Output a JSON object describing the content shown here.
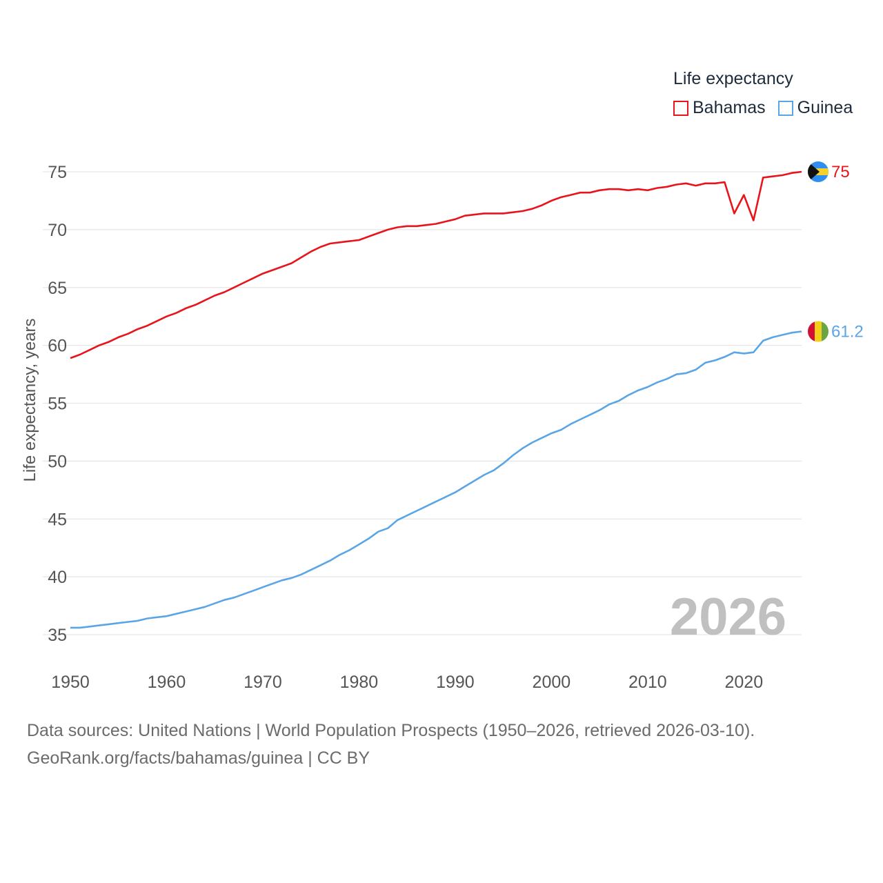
{
  "legend": {
    "title": "Life expectancy",
    "items": [
      {
        "label": "Bahamas",
        "color": "#e8131b"
      },
      {
        "label": "Guinea",
        "color": "#5aa5e6"
      }
    ]
  },
  "footer": {
    "line1": "Data sources: United Nations | World Population Prospects (1950–2026, retrieved 2026-03-10).",
    "line2": "GeoRank.org/facts/bahamas/guinea | CC BY"
  },
  "chart_data": {
    "type": "line",
    "title": "Life expectancy",
    "xlabel": "",
    "ylabel": "Life expectancy, years",
    "year_label": "2026",
    "xlim": [
      1950,
      2026
    ],
    "ylim": [
      35,
      75
    ],
    "x_ticks": [
      1950,
      1960,
      1970,
      1980,
      1990,
      2000,
      2010,
      2020
    ],
    "y_ticks": [
      35,
      40,
      45,
      50,
      55,
      60,
      65,
      70,
      75
    ],
    "grid": true,
    "legend_position": "top-right",
    "x": [
      1950,
      1951,
      1952,
      1953,
      1954,
      1955,
      1956,
      1957,
      1958,
      1959,
      1960,
      1961,
      1962,
      1963,
      1964,
      1965,
      1966,
      1967,
      1968,
      1969,
      1970,
      1971,
      1972,
      1973,
      1974,
      1975,
      1976,
      1977,
      1978,
      1979,
      1980,
      1981,
      1982,
      1983,
      1984,
      1985,
      1986,
      1987,
      1988,
      1989,
      1990,
      1991,
      1992,
      1993,
      1994,
      1995,
      1996,
      1997,
      1998,
      1999,
      2000,
      2001,
      2002,
      2003,
      2004,
      2005,
      2006,
      2007,
      2008,
      2009,
      2010,
      2011,
      2012,
      2013,
      2014,
      2015,
      2016,
      2017,
      2018,
      2019,
      2020,
      2021,
      2022,
      2023,
      2024,
      2025,
      2026
    ],
    "series": [
      {
        "name": "Bahamas",
        "color": "#e8131b",
        "end_label": "75",
        "flag": "bahamas-flag-icon",
        "values": [
          58.9,
          59.2,
          59.6,
          60.0,
          60.3,
          60.7,
          61.0,
          61.4,
          61.7,
          62.1,
          62.5,
          62.8,
          63.2,
          63.5,
          63.9,
          64.3,
          64.6,
          65.0,
          65.4,
          65.8,
          66.2,
          66.5,
          66.8,
          67.1,
          67.6,
          68.1,
          68.5,
          68.8,
          68.9,
          69.0,
          69.1,
          69.4,
          69.7,
          70.0,
          70.2,
          70.3,
          70.3,
          70.4,
          70.5,
          70.7,
          70.9,
          71.2,
          71.3,
          71.4,
          71.4,
          71.4,
          71.5,
          71.6,
          71.8,
          72.1,
          72.5,
          72.8,
          73.0,
          73.2,
          73.2,
          73.4,
          73.5,
          73.5,
          73.4,
          73.5,
          73.4,
          73.6,
          73.7,
          73.9,
          74.0,
          73.8,
          74.0,
          74.0,
          74.1,
          71.4,
          73.0,
          70.8,
          74.5,
          74.6,
          74.7,
          74.9,
          75.0
        ]
      },
      {
        "name": "Guinea",
        "color": "#5aa5e6",
        "end_label": "61.2",
        "flag": "guinea-flag-icon",
        "values": [
          35.6,
          35.6,
          35.7,
          35.8,
          35.9,
          36.0,
          36.1,
          36.2,
          36.4,
          36.5,
          36.6,
          36.8,
          37.0,
          37.2,
          37.4,
          37.7,
          38.0,
          38.2,
          38.5,
          38.8,
          39.1,
          39.4,
          39.7,
          39.9,
          40.2,
          40.6,
          41.0,
          41.4,
          41.9,
          42.3,
          42.8,
          43.3,
          43.9,
          44.2,
          44.9,
          45.3,
          45.7,
          46.1,
          46.5,
          46.9,
          47.3,
          47.8,
          48.3,
          48.8,
          49.2,
          49.8,
          50.5,
          51.1,
          51.6,
          52.0,
          52.4,
          52.7,
          53.2,
          53.6,
          54.0,
          54.4,
          54.9,
          55.2,
          55.7,
          56.1,
          56.4,
          56.8,
          57.1,
          57.5,
          57.6,
          57.9,
          58.5,
          58.7,
          59.0,
          59.4,
          59.3,
          59.4,
          60.4,
          60.7,
          60.9,
          61.1,
          61.2
        ]
      }
    ]
  }
}
